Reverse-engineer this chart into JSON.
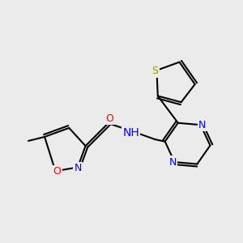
{
  "background_color": "#ebebeb",
  "bond_color": "#000000",
  "bond_width": 1.5,
  "atom_colors": {
    "O": "#ff0000",
    "N": "#0000ff",
    "S": "#999900",
    "C": "#000000"
  },
  "font_size": 9,
  "font_size_small": 8
}
